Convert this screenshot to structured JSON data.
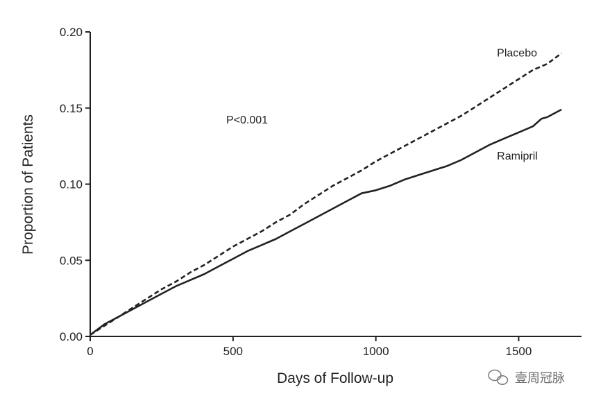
{
  "chart_data": {
    "type": "line",
    "title": "",
    "xlabel": "Days of Follow-up",
    "ylabel": "Proportion of Patients",
    "xlim": [
      0,
      1720
    ],
    "ylim": [
      0,
      0.2
    ],
    "xticks": [
      0,
      500,
      1000,
      1500
    ],
    "xtick_labels": [
      "0",
      "500",
      "1000",
      "1500"
    ],
    "yticks": [
      0,
      0.05,
      0.1,
      0.15,
      0.2
    ],
    "ytick_labels": [
      "0.00",
      "0.05",
      "0.10",
      "0.15",
      "0.20"
    ],
    "grid": false,
    "legend": "none (series labelled directly on the chart)",
    "annotation": "P<0.001",
    "series": [
      {
        "name": "Placebo",
        "style": "dashed",
        "color": "#222222",
        "x": [
          0,
          50,
          100,
          150,
          200,
          250,
          300,
          350,
          400,
          450,
          500,
          550,
          600,
          650,
          700,
          750,
          800,
          850,
          900,
          950,
          1000,
          1050,
          1100,
          1150,
          1200,
          1250,
          1300,
          1350,
          1400,
          1450,
          1500,
          1550,
          1600,
          1650
        ],
        "y": [
          0.001,
          0.007,
          0.013,
          0.019,
          0.025,
          0.031,
          0.036,
          0.042,
          0.047,
          0.053,
          0.059,
          0.064,
          0.069,
          0.075,
          0.08,
          0.087,
          0.093,
          0.099,
          0.104,
          0.109,
          0.115,
          0.12,
          0.125,
          0.13,
          0.135,
          0.14,
          0.145,
          0.151,
          0.157,
          0.163,
          0.169,
          0.175,
          0.179,
          0.186
        ]
      },
      {
        "name": "Ramipril",
        "style": "solid",
        "color": "#222222",
        "x": [
          0,
          50,
          100,
          150,
          200,
          250,
          300,
          350,
          400,
          450,
          500,
          550,
          600,
          650,
          700,
          750,
          800,
          850,
          900,
          950,
          1000,
          1050,
          1100,
          1150,
          1200,
          1250,
          1300,
          1350,
          1400,
          1450,
          1500,
          1550,
          1580,
          1600,
          1650
        ],
        "y": [
          0.001,
          0.008,
          0.013,
          0.018,
          0.023,
          0.028,
          0.033,
          0.037,
          0.041,
          0.046,
          0.051,
          0.056,
          0.06,
          0.064,
          0.069,
          0.074,
          0.079,
          0.084,
          0.089,
          0.094,
          0.096,
          0.099,
          0.103,
          0.106,
          0.109,
          0.112,
          0.116,
          0.121,
          0.126,
          0.13,
          0.134,
          0.138,
          0.143,
          0.144,
          0.149
        ]
      }
    ]
  },
  "watermark": {
    "text": "壹周冠脉",
    "icon": "wechat-icon"
  }
}
